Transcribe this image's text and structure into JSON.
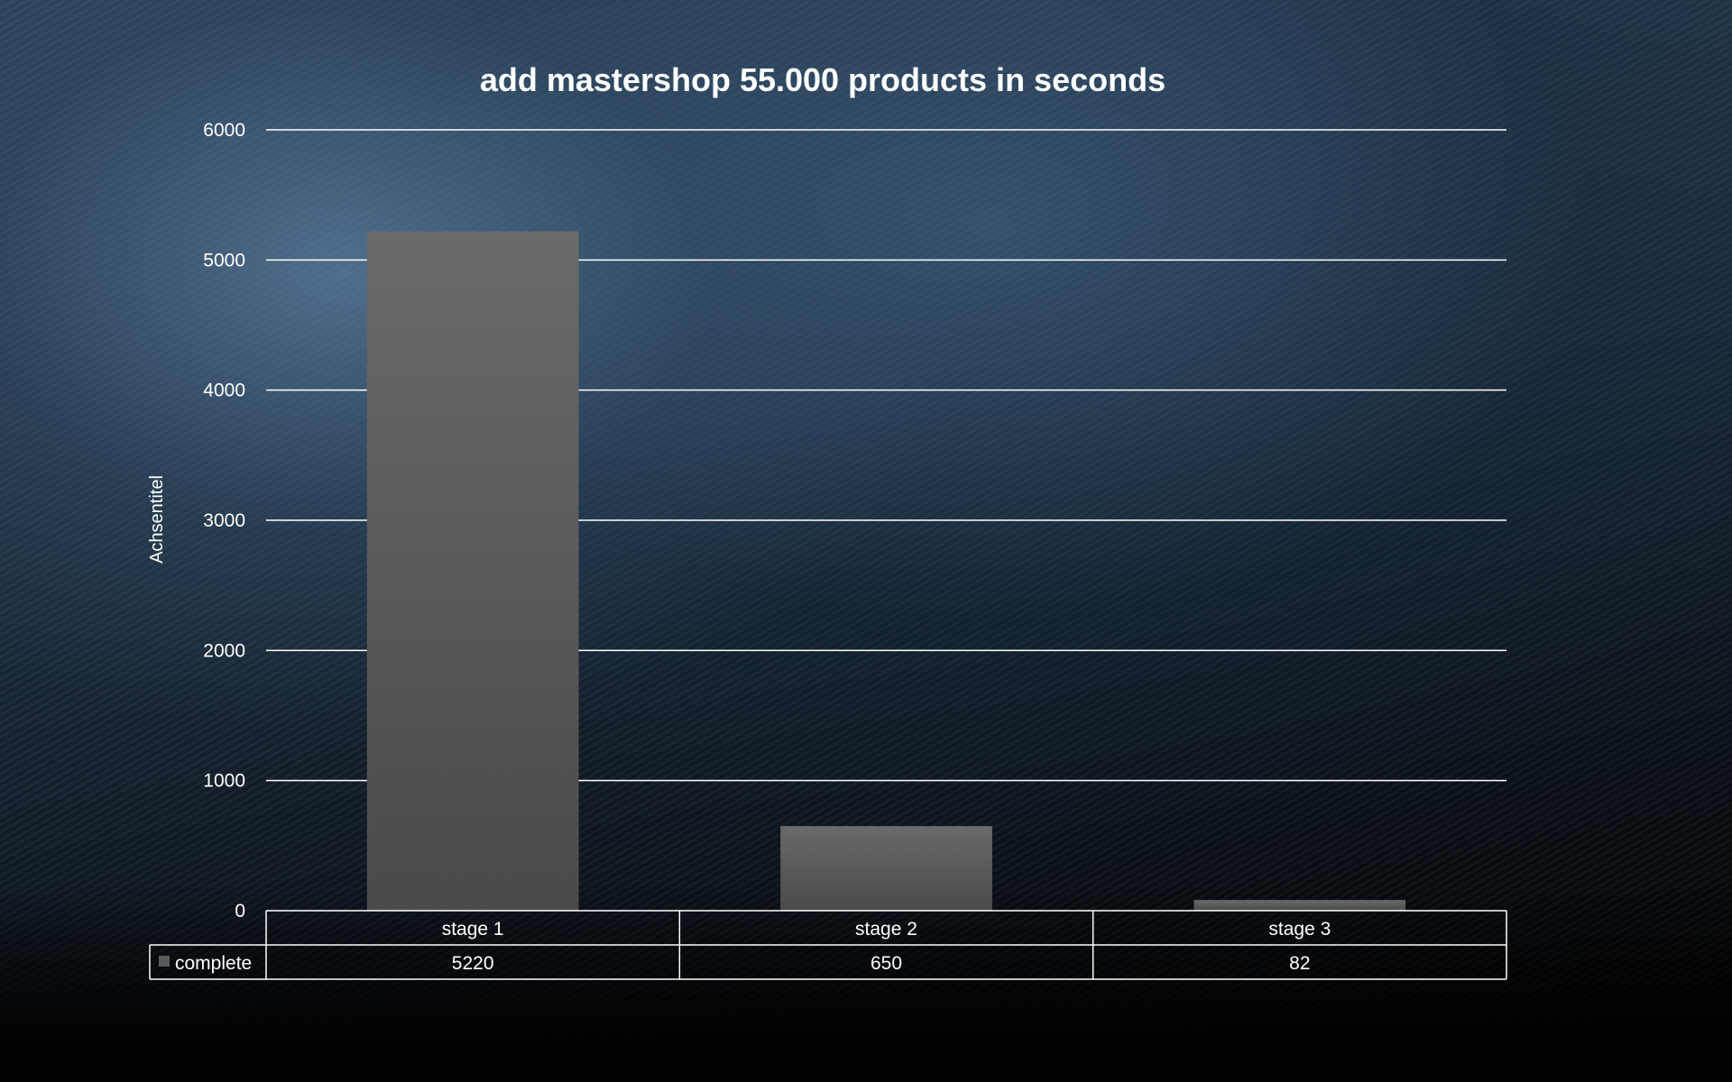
{
  "chart_data": {
    "type": "bar",
    "title": "add mastershop 55.000 products in seconds",
    "ylabel": "Achsentitel",
    "xlabel": "",
    "categories": [
      "stage 1",
      "stage 2",
      "stage 3"
    ],
    "series": [
      {
        "name": "complete",
        "values": [
          5220,
          650,
          82
        ],
        "color": "#5a5a5a"
      }
    ],
    "ylim": [
      0,
      6000
    ],
    "yticks": [
      0,
      1000,
      2000,
      3000,
      4000,
      5000,
      6000
    ],
    "grid": true,
    "legend": "data-table"
  }
}
